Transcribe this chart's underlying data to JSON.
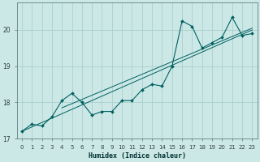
{
  "xlabel": "Humidex (Indice chaleur)",
  "ylabel": "",
  "background_color": "#cce8e6",
  "grid_color": "#aacfcd",
  "line_color": "#006060",
  "xlim": [
    -0.5,
    23.5
  ],
  "ylim": [
    17.0,
    20.75
  ],
  "yticks": [
    17,
    18,
    19,
    20
  ],
  "xticks": [
    0,
    1,
    2,
    3,
    4,
    5,
    6,
    7,
    8,
    9,
    10,
    11,
    12,
    13,
    14,
    15,
    16,
    17,
    18,
    19,
    20,
    21,
    22,
    23
  ],
  "x": [
    0,
    1,
    2,
    3,
    4,
    5,
    6,
    7,
    8,
    9,
    10,
    11,
    12,
    13,
    14,
    15,
    16,
    17,
    18,
    19,
    20,
    21,
    22,
    23
  ],
  "y_main": [
    17.2,
    17.4,
    17.35,
    17.6,
    18.05,
    18.25,
    18.0,
    17.65,
    17.75,
    17.75,
    18.05,
    18.05,
    18.35,
    18.5,
    18.45,
    19.0,
    20.25,
    20.1,
    19.5,
    19.65,
    19.8,
    20.35,
    19.85,
    19.9
  ],
  "straight_line1_x": [
    0,
    23
  ],
  "straight_line1_y": [
    17.2,
    20.0
  ],
  "straight_line2_x": [
    4,
    23
  ],
  "straight_line2_y": [
    17.85,
    20.05
  ],
  "figsize": [
    3.2,
    2.0
  ],
  "dpi": 100
}
